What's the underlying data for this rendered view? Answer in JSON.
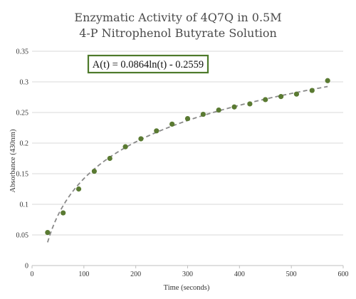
{
  "chart_data": {
    "type": "scatter",
    "title_lines": [
      "Enzymatic Activity of 4Q7Q in 0.5M",
      "4-P Nitrophenol Butyrate Solution"
    ],
    "xlabel": "Time (seconds)",
    "ylabel": "Absorbance (430nm)",
    "xlim": [
      0,
      600
    ],
    "ylim": [
      0,
      0.35
    ],
    "xticks": [
      0,
      100,
      200,
      300,
      400,
      500,
      600
    ],
    "yticks": [
      0,
      0.05,
      0.1,
      0.15,
      0.2,
      0.25,
      0.3,
      0.35
    ],
    "ytick_labels": [
      "0",
      "0.05",
      "0.1",
      "0.15",
      "0.2",
      "0.25",
      "0.3",
      "0.35"
    ],
    "grid": "horizontal",
    "series": [
      {
        "x": [
          30,
          60,
          90,
          120,
          150,
          180,
          210,
          240,
          270,
          300,
          330,
          360,
          390,
          420,
          450,
          480,
          510,
          540,
          570
        ],
        "y": [
          0.054,
          0.086,
          0.125,
          0.154,
          0.175,
          0.194,
          0.207,
          0.22,
          0.231,
          0.24,
          0.247,
          0.254,
          0.259,
          0.264,
          0.271,
          0.276,
          0.28,
          0.286,
          0.302
        ],
        "color": "#5a7a32"
      }
    ],
    "trendline": {
      "type": "logarithmic",
      "a": 0.0864,
      "b": -0.2559,
      "x_range": [
        30,
        570
      ],
      "color": "#8a8a8a",
      "style": "dashed"
    },
    "annotation": {
      "text": "A(t) = 0.0864ln(t) - 0.2559",
      "border_color": "#4e7a2b",
      "placement": "top-left"
    }
  }
}
